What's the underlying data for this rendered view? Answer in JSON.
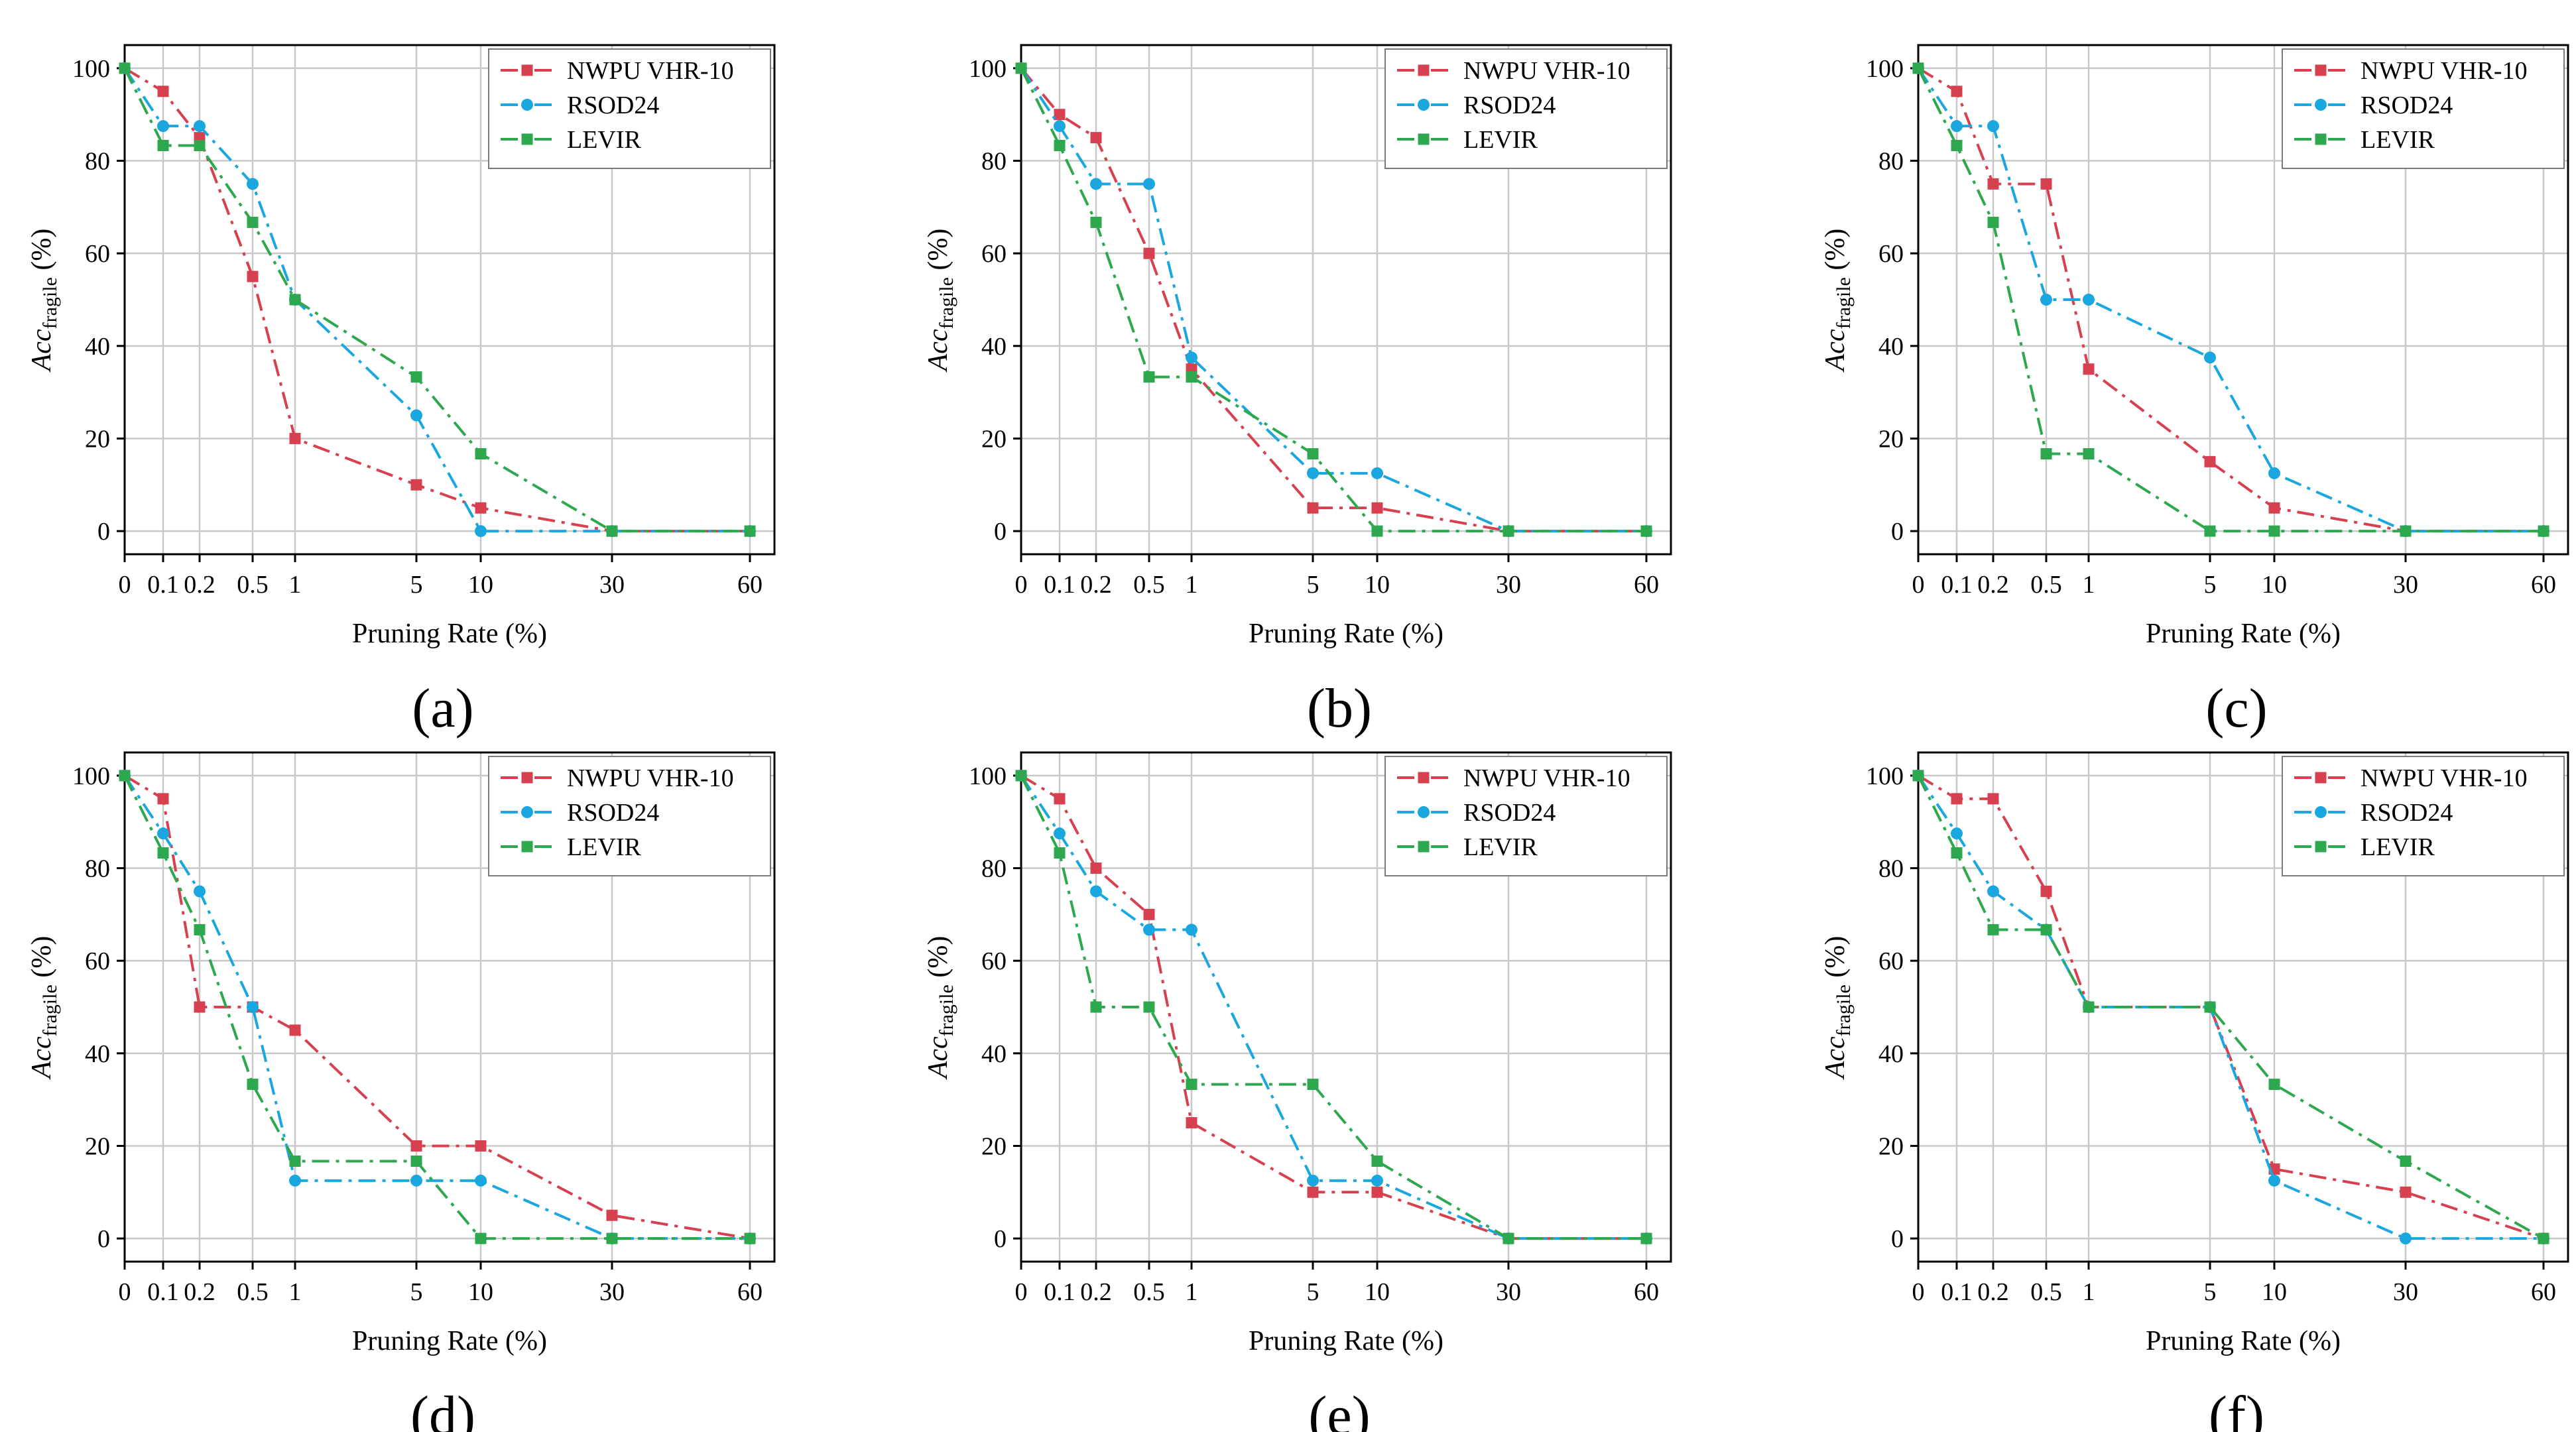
{
  "colors": {
    "nwpu": "#d6404f",
    "rsod": "#1aa7df",
    "levir": "#2ea84e"
  },
  "chart_data": [
    {
      "type": "line",
      "label": "(a)",
      "xlabel": "Pruning Rate (%)",
      "ylabel_main": "Acc",
      "ylabel_sub": "fragile",
      "ylabel_unit": " (%)",
      "x": [
        0,
        0.1,
        0.2,
        0.5,
        1,
        5,
        10,
        30,
        60
      ],
      "x_tick_labels": [
        "0",
        "0.1",
        "0.2",
        "0.5",
        "1",
        "5",
        "10",
        "30",
        "60"
      ],
      "yticks": [
        0,
        20,
        40,
        60,
        80,
        100
      ],
      "ylim": [
        -5,
        105
      ],
      "legend_position": "top-right",
      "series": [
        {
          "name": "NWPU VHR-10",
          "color_key": "nwpu",
          "marker": "square",
          "dash": "dashdot",
          "values": [
            100,
            95,
            85,
            55,
            20,
            10,
            5,
            0,
            0
          ]
        },
        {
          "name": "RSOD24",
          "color_key": "rsod",
          "marker": "circle",
          "dash": "dashdot",
          "values": [
            100,
            87.5,
            87.5,
            75,
            50,
            25,
            0,
            0,
            0
          ]
        },
        {
          "name": "LEVIR",
          "color_key": "levir",
          "marker": "square",
          "dash": "dashdot",
          "values": [
            100,
            83.3,
            83.3,
            66.7,
            50,
            33.3,
            16.7,
            0,
            0
          ]
        }
      ]
    },
    {
      "type": "line",
      "label": "(b)",
      "xlabel": "Pruning Rate (%)",
      "ylabel_main": "Acc",
      "ylabel_sub": "fragile",
      "ylabel_unit": " (%)",
      "x": [
        0,
        0.1,
        0.2,
        0.5,
        1,
        5,
        10,
        30,
        60
      ],
      "x_tick_labels": [
        "0",
        "0.1",
        "0.2",
        "0.5",
        "1",
        "5",
        "10",
        "30",
        "60"
      ],
      "yticks": [
        0,
        20,
        40,
        60,
        80,
        100
      ],
      "ylim": [
        -5,
        105
      ],
      "legend_position": "top-right",
      "series": [
        {
          "name": "NWPU VHR-10",
          "color_key": "nwpu",
          "marker": "square",
          "dash": "dashdot",
          "values": [
            100,
            90,
            85,
            60,
            35,
            5,
            5,
            0,
            0
          ]
        },
        {
          "name": "RSOD24",
          "color_key": "rsod",
          "marker": "circle",
          "dash": "dashdot",
          "values": [
            100,
            87.5,
            75,
            75,
            37.5,
            12.5,
            12.5,
            0,
            0
          ]
        },
        {
          "name": "LEVIR",
          "color_key": "levir",
          "marker": "square",
          "dash": "dashdot",
          "values": [
            100,
            83.3,
            66.7,
            33.3,
            33.3,
            16.7,
            0,
            0,
            0
          ]
        }
      ]
    },
    {
      "type": "line",
      "label": "(c)",
      "xlabel": "Pruning Rate (%)",
      "ylabel_main": "Acc",
      "ylabel_sub": "fragile",
      "ylabel_unit": " (%)",
      "x": [
        0,
        0.1,
        0.2,
        0.5,
        1,
        5,
        10,
        30,
        60
      ],
      "x_tick_labels": [
        "0",
        "0.1",
        "0.2",
        "0.5",
        "1",
        "5",
        "10",
        "30",
        "60"
      ],
      "yticks": [
        0,
        20,
        40,
        60,
        80,
        100
      ],
      "ylim": [
        -5,
        105
      ],
      "legend_position": "top-right",
      "series": [
        {
          "name": "NWPU VHR-10",
          "color_key": "nwpu",
          "marker": "square",
          "dash": "dashdot",
          "values": [
            100,
            95,
            75,
            75,
            35,
            15,
            5,
            0,
            0
          ]
        },
        {
          "name": "RSOD24",
          "color_key": "rsod",
          "marker": "circle",
          "dash": "dashdot",
          "values": [
            100,
            87.5,
            87.5,
            50,
            50,
            37.5,
            12.5,
            0,
            0
          ]
        },
        {
          "name": "LEVIR",
          "color_key": "levir",
          "marker": "square",
          "dash": "dashdot",
          "values": [
            100,
            83.3,
            66.7,
            16.7,
            16.7,
            0,
            0,
            0,
            0
          ]
        }
      ]
    },
    {
      "type": "line",
      "label": "(d)",
      "xlabel": "Pruning Rate (%)",
      "ylabel_main": "Acc",
      "ylabel_sub": "fragile",
      "ylabel_unit": " (%)",
      "x": [
        0,
        0.1,
        0.2,
        0.5,
        1,
        5,
        10,
        30,
        60
      ],
      "x_tick_labels": [
        "0",
        "0.1",
        "0.2",
        "0.5",
        "1",
        "5",
        "10",
        "30",
        "60"
      ],
      "yticks": [
        0,
        20,
        40,
        60,
        80,
        100
      ],
      "ylim": [
        -5,
        105
      ],
      "legend_position": "top-right",
      "series": [
        {
          "name": "NWPU VHR-10",
          "color_key": "nwpu",
          "marker": "square",
          "dash": "dashdot",
          "values": [
            100,
            95,
            50,
            50,
            45,
            20,
            20,
            5,
            0
          ]
        },
        {
          "name": "RSOD24",
          "color_key": "rsod",
          "marker": "circle",
          "dash": "dashdot",
          "values": [
            100,
            87.5,
            75,
            50,
            12.5,
            12.5,
            12.5,
            0,
            0
          ]
        },
        {
          "name": "LEVIR",
          "color_key": "levir",
          "marker": "square",
          "dash": "dashdot",
          "values": [
            100,
            83.3,
            66.7,
            33.3,
            16.7,
            16.7,
            0,
            0,
            0
          ]
        }
      ]
    },
    {
      "type": "line",
      "label": "(e)",
      "xlabel": "Pruning Rate (%)",
      "ylabel_main": "Acc",
      "ylabel_sub": "fragile",
      "ylabel_unit": " (%)",
      "x": [
        0,
        0.1,
        0.2,
        0.5,
        1,
        5,
        10,
        30,
        60
      ],
      "x_tick_labels": [
        "0",
        "0.1",
        "0.2",
        "0.5",
        "1",
        "5",
        "10",
        "30",
        "60"
      ],
      "yticks": [
        0,
        20,
        40,
        60,
        80,
        100
      ],
      "ylim": [
        -5,
        105
      ],
      "legend_position": "top-right",
      "series": [
        {
          "name": "NWPU VHR-10",
          "color_key": "nwpu",
          "marker": "square",
          "dash": "dashdot",
          "values": [
            100,
            95,
            80,
            70,
            25,
            10,
            10,
            0,
            0
          ]
        },
        {
          "name": "RSOD24",
          "color_key": "rsod",
          "marker": "circle",
          "dash": "dashdot",
          "values": [
            100,
            87.5,
            75,
            66.7,
            66.7,
            12.5,
            12.5,
            0,
            0
          ]
        },
        {
          "name": "LEVIR",
          "color_key": "levir",
          "marker": "square",
          "dash": "dashdot",
          "values": [
            100,
            83.3,
            50,
            50,
            33.3,
            33.3,
            16.7,
            0,
            0
          ]
        }
      ]
    },
    {
      "type": "line",
      "label": "(f)",
      "xlabel": "Pruning Rate (%)",
      "ylabel_main": "Acc",
      "ylabel_sub": "fragile",
      "ylabel_unit": " (%)",
      "x": [
        0,
        0.1,
        0.2,
        0.5,
        1,
        5,
        10,
        30,
        60
      ],
      "x_tick_labels": [
        "0",
        "0.1",
        "0.2",
        "0.5",
        "1",
        "5",
        "10",
        "30",
        "60"
      ],
      "yticks": [
        0,
        20,
        40,
        60,
        80,
        100
      ],
      "ylim": [
        -5,
        105
      ],
      "legend_position": "top-right",
      "series": [
        {
          "name": "NWPU VHR-10",
          "color_key": "nwpu",
          "marker": "square",
          "dash": "dashdot",
          "values": [
            100,
            95,
            95,
            75,
            50,
            50,
            15,
            10,
            0
          ]
        },
        {
          "name": "RSOD24",
          "color_key": "rsod",
          "marker": "circle",
          "dash": "dashdot",
          "values": [
            100,
            87.5,
            75,
            66.7,
            50,
            50,
            12.5,
            0,
            0
          ]
        },
        {
          "name": "LEVIR",
          "color_key": "levir",
          "marker": "square",
          "dash": "dashdot",
          "values": [
            100,
            83.3,
            66.7,
            66.7,
            50,
            50,
            33.3,
            16.7,
            0
          ]
        }
      ]
    }
  ]
}
